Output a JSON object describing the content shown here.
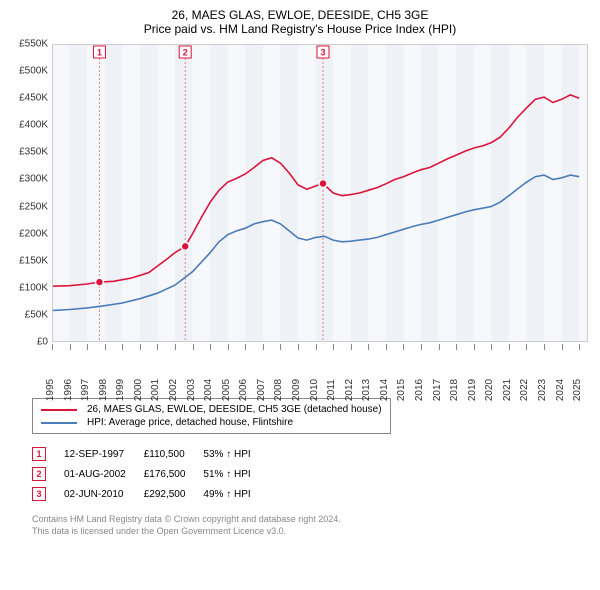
{
  "titles": {
    "line1": "26, MAES GLAS, EWLOE, DEESIDE, CH5 3GE",
    "line2": "Price paid vs. HM Land Registry's House Price Index (HPI)"
  },
  "chart": {
    "type": "line",
    "x_range": [
      1995,
      2025.5
    ],
    "y_range": [
      0,
      550000
    ],
    "y_ticks": [
      0,
      50000,
      100000,
      150000,
      200000,
      250000,
      300000,
      350000,
      400000,
      450000,
      500000,
      550000
    ],
    "y_tick_labels": [
      "£0",
      "£50K",
      "£100K",
      "£150K",
      "£200K",
      "£250K",
      "£300K",
      "£350K",
      "£400K",
      "£450K",
      "£500K",
      "£550K"
    ],
    "x_ticks_major": [
      1995,
      1996,
      1997,
      1998,
      1999,
      2000,
      2001,
      2002,
      2003,
      2004,
      2005,
      2006,
      2007,
      2008,
      2009,
      2010,
      2011,
      2012,
      2013,
      2014,
      2015,
      2016,
      2017,
      2018,
      2019,
      2020,
      2021,
      2022,
      2023,
      2024,
      2025
    ],
    "x_band_years_grey": [
      1996,
      1998,
      2000,
      2002,
      2004,
      2006,
      2008,
      2010,
      2012,
      2014,
      2016,
      2018,
      2020,
      2022,
      2024
    ],
    "colors": {
      "series_property": "#dc143c",
      "series_hpi": "#4a7db8",
      "grid_band": "#eef2f6",
      "grid_band_light": "#f6f8fb",
      "sale_dashed": "#e58080",
      "tick": "#888888",
      "text": "#333333",
      "footer": "#888888",
      "background": "#ffffff"
    },
    "line_width": 1.6,
    "font_size_axis": 10,
    "font_size_title": 12,
    "series_property": [
      [
        1995.0,
        103000
      ],
      [
        1996.0,
        104000
      ],
      [
        1997.0,
        107000
      ],
      [
        1997.7,
        110500
      ],
      [
        1998.5,
        112000
      ],
      [
        1999.5,
        118000
      ],
      [
        2000.5,
        128000
      ],
      [
        2001.0,
        140000
      ],
      [
        2001.5,
        152000
      ],
      [
        2002.0,
        165000
      ],
      [
        2002.58,
        176500
      ],
      [
        2003.0,
        200000
      ],
      [
        2003.5,
        230000
      ],
      [
        2004.0,
        258000
      ],
      [
        2004.5,
        280000
      ],
      [
        2005.0,
        295000
      ],
      [
        2005.5,
        302000
      ],
      [
        2006.0,
        310000
      ],
      [
        2006.5,
        322000
      ],
      [
        2007.0,
        335000
      ],
      [
        2007.5,
        340000
      ],
      [
        2008.0,
        330000
      ],
      [
        2008.5,
        312000
      ],
      [
        2009.0,
        290000
      ],
      [
        2009.5,
        282000
      ],
      [
        2010.0,
        288000
      ],
      [
        2010.42,
        292500
      ],
      [
        2011.0,
        275000
      ],
      [
        2011.5,
        270000
      ],
      [
        2012.0,
        272000
      ],
      [
        2012.5,
        275000
      ],
      [
        2013.0,
        280000
      ],
      [
        2013.5,
        285000
      ],
      [
        2014.0,
        292000
      ],
      [
        2014.5,
        300000
      ],
      [
        2015.0,
        305000
      ],
      [
        2015.5,
        312000
      ],
      [
        2016.0,
        318000
      ],
      [
        2016.5,
        322000
      ],
      [
        2017.0,
        330000
      ],
      [
        2017.5,
        338000
      ],
      [
        2018.0,
        345000
      ],
      [
        2018.5,
        352000
      ],
      [
        2019.0,
        358000
      ],
      [
        2019.5,
        362000
      ],
      [
        2020.0,
        368000
      ],
      [
        2020.5,
        378000
      ],
      [
        2021.0,
        395000
      ],
      [
        2021.5,
        415000
      ],
      [
        2022.0,
        432000
      ],
      [
        2022.5,
        448000
      ],
      [
        2023.0,
        452000
      ],
      [
        2023.5,
        442000
      ],
      [
        2024.0,
        448000
      ],
      [
        2024.5,
        456000
      ],
      [
        2025.0,
        450000
      ]
    ],
    "series_hpi": [
      [
        1995.0,
        58000
      ],
      [
        1996.0,
        60000
      ],
      [
        1997.0,
        63000
      ],
      [
        1998.0,
        67000
      ],
      [
        1999.0,
        72000
      ],
      [
        2000.0,
        80000
      ],
      [
        2001.0,
        90000
      ],
      [
        2002.0,
        105000
      ],
      [
        2003.0,
        130000
      ],
      [
        2004.0,
        165000
      ],
      [
        2004.5,
        185000
      ],
      [
        2005.0,
        198000
      ],
      [
        2005.5,
        205000
      ],
      [
        2006.0,
        210000
      ],
      [
        2006.5,
        218000
      ],
      [
        2007.0,
        222000
      ],
      [
        2007.5,
        225000
      ],
      [
        2008.0,
        218000
      ],
      [
        2008.5,
        205000
      ],
      [
        2009.0,
        192000
      ],
      [
        2009.5,
        188000
      ],
      [
        2010.0,
        193000
      ],
      [
        2010.5,
        195000
      ],
      [
        2011.0,
        188000
      ],
      [
        2011.5,
        185000
      ],
      [
        2012.0,
        186000
      ],
      [
        2012.5,
        188000
      ],
      [
        2013.0,
        190000
      ],
      [
        2013.5,
        193000
      ],
      [
        2014.0,
        198000
      ],
      [
        2014.5,
        203000
      ],
      [
        2015.0,
        208000
      ],
      [
        2015.5,
        213000
      ],
      [
        2016.0,
        217000
      ],
      [
        2016.5,
        220000
      ],
      [
        2017.0,
        225000
      ],
      [
        2017.5,
        230000
      ],
      [
        2018.0,
        235000
      ],
      [
        2018.5,
        240000
      ],
      [
        2019.0,
        244000
      ],
      [
        2019.5,
        247000
      ],
      [
        2020.0,
        250000
      ],
      [
        2020.5,
        258000
      ],
      [
        2021.0,
        270000
      ],
      [
        2021.5,
        283000
      ],
      [
        2022.0,
        295000
      ],
      [
        2022.5,
        305000
      ],
      [
        2023.0,
        308000
      ],
      [
        2023.5,
        300000
      ],
      [
        2024.0,
        303000
      ],
      [
        2024.5,
        308000
      ],
      [
        2025.0,
        305000
      ]
    ],
    "sale_points": [
      {
        "n": "1",
        "year": 1997.7,
        "value": 110500
      },
      {
        "n": "2",
        "year": 2002.58,
        "value": 176500
      },
      {
        "n": "3",
        "year": 2010.42,
        "value": 292500
      }
    ]
  },
  "legend": {
    "items": [
      {
        "color": "#dc143c",
        "label": "26, MAES GLAS, EWLOE, DEESIDE, CH5 3GE (detached house)"
      },
      {
        "color": "#4a7db8",
        "label": "HPI: Average price, detached house, Flintshire"
      }
    ]
  },
  "transactions": [
    {
      "n": "1",
      "date": "12-SEP-1997",
      "price": "£110,500",
      "pct": "53% ↑ HPI"
    },
    {
      "n": "2",
      "date": "01-AUG-2002",
      "price": "£176,500",
      "pct": "51% ↑ HPI"
    },
    {
      "n": "3",
      "date": "02-JUN-2010",
      "price": "£292,500",
      "pct": "49% ↑ HPI"
    }
  ],
  "footer": {
    "line1": "Contains HM Land Registry data © Crown copyright and database right 2024.",
    "line2": "This data is licensed under the Open Government Licence v3.0."
  }
}
